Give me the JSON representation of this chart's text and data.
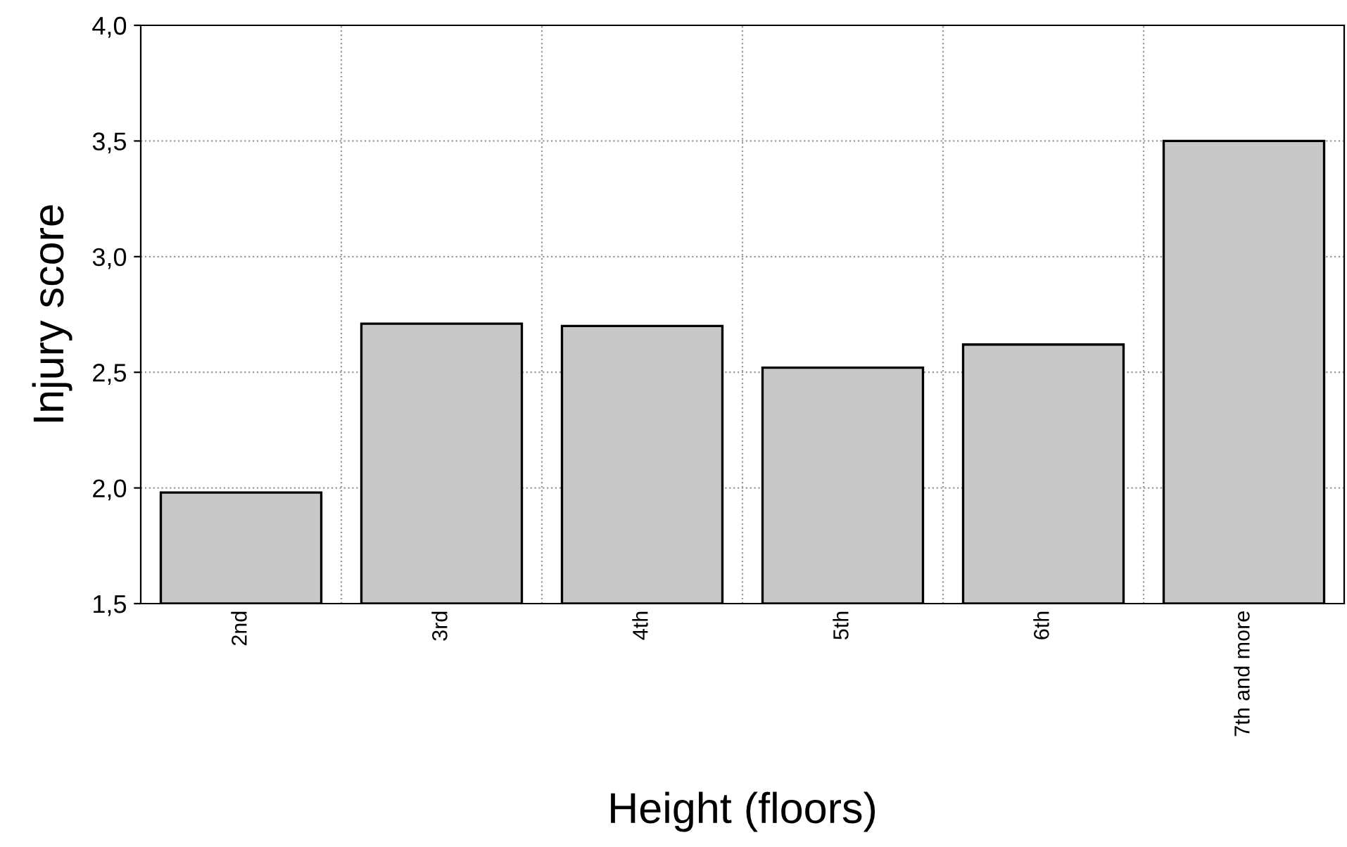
{
  "chart_data": {
    "type": "bar",
    "xlabel": "Height (floors)",
    "ylabel": "Injury score",
    "categories": [
      "2nd",
      "3rd",
      "4th",
      "5th",
      "6th",
      "7th and more"
    ],
    "values": [
      1.98,
      2.71,
      2.7,
      2.52,
      2.62,
      3.5
    ],
    "color": "#c8c8c8",
    "ylim": [
      1.5,
      4.0
    ],
    "yticks": [
      {
        "value": 1.5,
        "label": "1,5"
      },
      {
        "value": 2.0,
        "label": "2,0"
      },
      {
        "value": 2.5,
        "label": "2,5"
      },
      {
        "value": 3.0,
        "label": "3,0"
      },
      {
        "value": 3.5,
        "label": "3,5"
      },
      {
        "value": 4.0,
        "label": "4,0"
      }
    ],
    "grid": true
  }
}
